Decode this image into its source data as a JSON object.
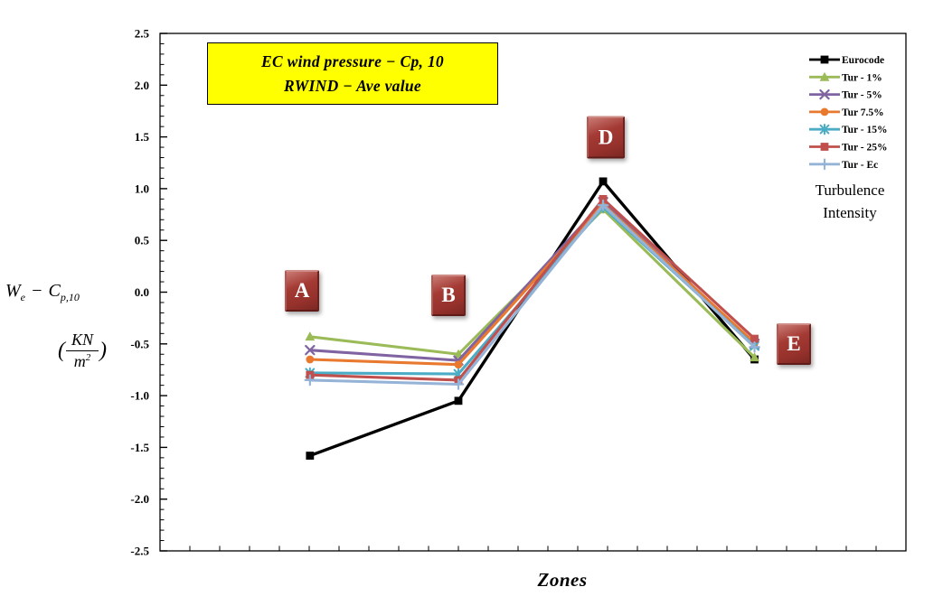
{
  "annotation": {
    "line1": "EC wind pressure − Cp, 10",
    "line2": "RWIND − Ave value",
    "bg_color": "#FFFF00"
  },
  "axes": {
    "y_label": {
      "term_main": "W",
      "term_main_sub": "e",
      "operator": "−",
      "term_coef": "C",
      "term_coef_sub": "p,10",
      "unit_open": "(",
      "unit_numerator": "KN",
      "unit_denominator_base": "m",
      "unit_denominator_exp": "2",
      "unit_close": ")"
    }
  },
  "chart_data": {
    "type": "line",
    "title": "EC wind pressure − Cp,10 | RWIND − Ave value",
    "xlabel": "Zones",
    "ylabel": "We − Cp,10 (KN/m2)",
    "categories": [
      "A",
      "B",
      "D",
      "E"
    ],
    "ylim": [
      -2.5,
      2.5
    ],
    "y_major_step": 0.5,
    "y_minor_step": 0.1,
    "grid": false,
    "legend_position": "top-right-inside",
    "legend_title_lines": [
      "Turbulence",
      "Intensity"
    ],
    "y_tick_labels": [
      "2.5",
      "2.0",
      "1.5",
      "1.0",
      "0.5",
      "0.0",
      "-0.5",
      "-1.0",
      "-1.5",
      "-2.0",
      "-2.5"
    ],
    "series": [
      {
        "name": "Eurocode",
        "color": "#000000",
        "marker": "square",
        "values": [
          -1.58,
          -1.05,
          1.07,
          -0.65
        ]
      },
      {
        "name": "Tur - 1%",
        "color": "#9BBB59",
        "marker": "triangle",
        "values": [
          -0.43,
          -0.6,
          0.8,
          -0.63
        ]
      },
      {
        "name": "Tur - 5%",
        "color": "#8064A2",
        "marker": "x",
        "values": [
          -0.56,
          -0.66,
          0.87,
          -0.5
        ]
      },
      {
        "name": "Tur 7.5%",
        "color": "#E8792E",
        "marker": "circle",
        "values": [
          -0.65,
          -0.7,
          0.85,
          -0.49
        ]
      },
      {
        "name": "Tur - 15%",
        "color": "#4BACC6",
        "marker": "star",
        "values": [
          -0.78,
          -0.79,
          0.82,
          -0.52
        ]
      },
      {
        "name": "Tur - 25%",
        "color": "#C0504D",
        "marker": "square",
        "values": [
          -0.8,
          -0.85,
          0.9,
          -0.45
        ]
      },
      {
        "name": "Tur - Ec",
        "color": "#95B3D7",
        "marker": "plus",
        "values": [
          -0.85,
          -0.89,
          0.84,
          -0.53
        ]
      }
    ]
  }
}
